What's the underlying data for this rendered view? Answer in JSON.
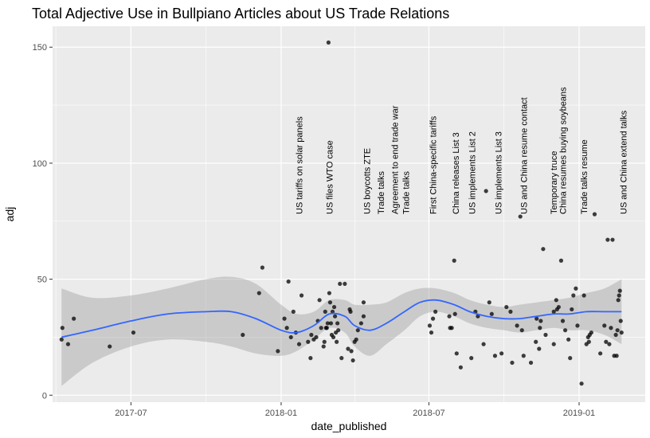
{
  "chart_data": {
    "type": "scatter",
    "title": "Total Adjective Use in Bullpiano Articles about US Trade Relations",
    "xlabel": "date_published",
    "ylabel": "adj",
    "xlim": [
      "2017-03-27",
      "2019-03-23"
    ],
    "ylim": [
      -3,
      159
    ],
    "x_ticks": [
      "2017-07-01",
      "2018-01-01",
      "2018-07-01",
      "2019-01-01"
    ],
    "x_tick_labels": [
      "2017-07",
      "2018-01",
      "2018-07",
      "2019-01"
    ],
    "y_ticks": [
      0,
      50,
      100,
      150
    ],
    "y_tick_labels": [
      "0",
      "50",
      "100",
      "150"
    ],
    "grid": true,
    "legend": "none",
    "colors": {
      "panel": "#ebebeb",
      "grid_major": "#ffffff",
      "point": "#000000",
      "smooth_line": "#3366ff",
      "ribbon": "#999999"
    },
    "series": [
      {
        "type": "points",
        "x": [
          "2017-04-07",
          "2017-04-08",
          "2017-04-15",
          "2017-04-22",
          "2017-06-05",
          "2017-07-04",
          "2017-11-15",
          "2017-12-05",
          "2017-12-09",
          "2017-12-28",
          "2018-01-05",
          "2018-01-08",
          "2018-01-10",
          "2018-01-13",
          "2018-01-16",
          "2018-01-19",
          "2018-01-23",
          "2018-01-26",
          "2018-02-03",
          "2018-02-06",
          "2018-02-07",
          "2018-02-10",
          "2018-02-13",
          "2018-02-15",
          "2018-02-17",
          "2018-02-19",
          "2018-02-22",
          "2018-02-23",
          "2018-02-24",
          "2018-02-25",
          "2018-02-26",
          "2018-02-27",
          "2018-02-28",
          "2018-03-01",
          "2018-03-02",
          "2018-03-03",
          "2018-03-04",
          "2018-03-05",
          "2018-03-06",
          "2018-03-07",
          "2018-03-08",
          "2018-03-09",
          "2018-03-10",
          "2018-03-11",
          "2018-03-12",
          "2018-03-14",
          "2018-03-16",
          "2018-03-20",
          "2018-03-24",
          "2018-03-26",
          "2018-03-27",
          "2018-03-28",
          "2018-03-30",
          "2018-04-01",
          "2018-04-03",
          "2018-04-05",
          "2018-04-09",
          "2018-04-12",
          "2018-04-12",
          "2018-07-02",
          "2018-07-04",
          "2018-07-06",
          "2018-07-09",
          "2018-07-26",
          "2018-07-27",
          "2018-07-29",
          "2018-08-01",
          "2018-08-02",
          "2018-08-04",
          "2018-08-09",
          "2018-08-22",
          "2018-08-27",
          "2018-08-30",
          "2018-09-06",
          "2018-09-09",
          "2018-09-13",
          "2018-09-16",
          "2018-09-20",
          "2018-09-28",
          "2018-10-04",
          "2018-10-09",
          "2018-10-11",
          "2018-10-17",
          "2018-10-21",
          "2018-10-23",
          "2018-10-25",
          "2018-11-03",
          "2018-11-09",
          "2018-11-10",
          "2018-11-13",
          "2018-11-14",
          "2018-11-15",
          "2018-11-18",
          "2018-11-21",
          "2018-12-01",
          "2018-12-01",
          "2018-12-04",
          "2018-12-05",
          "2018-12-07",
          "2018-12-10",
          "2018-12-12",
          "2018-12-15",
          "2018-12-19",
          "2018-12-21",
          "2018-12-23",
          "2018-12-25",
          "2018-12-28",
          "2018-12-30",
          "2019-01-04",
          "2019-01-07",
          "2019-01-10",
          "2019-01-12",
          "2019-01-13",
          "2019-01-14",
          "2019-01-16",
          "2019-01-20",
          "2019-01-27",
          "2019-02-01",
          "2019-02-03",
          "2019-02-05",
          "2019-02-07",
          "2019-02-09",
          "2019-02-11",
          "2019-02-13",
          "2019-02-15",
          "2019-02-16",
          "2019-02-17",
          "2019-02-18",
          "2019-02-19",
          "2019-02-20",
          "2019-02-21",
          "2019-02-22"
        ],
        "y": [
          24,
          29,
          22,
          33,
          21,
          27,
          26,
          44,
          55,
          19,
          33,
          29,
          49,
          25,
          36,
          27,
          22,
          43,
          23,
          16,
          26,
          24,
          25,
          32,
          41,
          29,
          21,
          23,
          36,
          29,
          29,
          31,
          152,
          44,
          40,
          31,
          26,
          36,
          25,
          38,
          34,
          27,
          23,
          31,
          28,
          48,
          16,
          48,
          20,
          37,
          36,
          19,
          15,
          23,
          24,
          28,
          31,
          34,
          40,
          30,
          27,
          33,
          36,
          34,
          29,
          29,
          58,
          35,
          18,
          12,
          16,
          36,
          34,
          22,
          88,
          40,
          35,
          17,
          18,
          38,
          36,
          14,
          30,
          77,
          28,
          17,
          14,
          23,
          33,
          20,
          29,
          32,
          63,
          26,
          22,
          36,
          41,
          37,
          38,
          58,
          32,
          28,
          24,
          16,
          37,
          43,
          46,
          30,
          5,
          43,
          22,
          25,
          23,
          26,
          27,
          78,
          18,
          30,
          23,
          67,
          22,
          29,
          67,
          17,
          26,
          17,
          28,
          41,
          43,
          45,
          32,
          27
        ]
      },
      {
        "type": "smooth",
        "name": "loess",
        "x": [
          "2017-04-07",
          "2017-05-15",
          "2017-07-01",
          "2017-08-15",
          "2017-10-01",
          "2017-11-01",
          "2017-12-01",
          "2018-01-01",
          "2018-01-20",
          "2018-02-10",
          "2018-03-01",
          "2018-03-20",
          "2018-04-01",
          "2018-04-20",
          "2018-05-10",
          "2018-06-01",
          "2018-06-20",
          "2018-07-10",
          "2018-08-01",
          "2018-08-20",
          "2018-09-10",
          "2018-10-01",
          "2018-10-20",
          "2018-11-10",
          "2018-12-01",
          "2018-12-20",
          "2019-01-10",
          "2019-02-01",
          "2019-02-22"
        ],
        "y": [
          25,
          28,
          32,
          35,
          36,
          36,
          33,
          28,
          27,
          30,
          35,
          34,
          30,
          28,
          31,
          36,
          40,
          41,
          39,
          36,
          34,
          33,
          33,
          34,
          35,
          35,
          36,
          36,
          36
        ],
        "ymin": [
          4,
          14,
          21,
          24,
          23,
          21,
          18,
          17,
          19,
          24,
          29,
          27,
          21,
          17,
          22,
          28,
          34,
          36,
          34,
          31,
          29,
          28,
          27,
          28,
          29,
          28,
          28,
          26,
          22
        ],
        "ymax": [
          46,
          42,
          43,
          46,
          50,
          51,
          48,
          39,
          35,
          36,
          41,
          41,
          39,
          39,
          40,
          44,
          46,
          46,
          44,
          41,
          39,
          38,
          39,
          40,
          41,
          42,
          44,
          46,
          50
        ]
      }
    ],
    "annotations": [
      {
        "date": "2018-01-23",
        "text": "US tariffs on solar panels"
      },
      {
        "date": "2018-03-01",
        "text": "US files WTO case"
      },
      {
        "date": "2018-04-16",
        "text": "US boycotts ZTE"
      },
      {
        "date": "2018-05-03",
        "text": "Trade talks"
      },
      {
        "date": "2018-05-20",
        "text": "Agreement to end trade war"
      },
      {
        "date": "2018-06-03",
        "text": "Trade talks"
      },
      {
        "date": "2018-07-06",
        "text": "First China-specific tariffs"
      },
      {
        "date": "2018-08-03",
        "text": "China releases List 3"
      },
      {
        "date": "2018-08-23",
        "text": "US implements List 2"
      },
      {
        "date": "2018-09-24",
        "text": "US implements List 3"
      },
      {
        "date": "2018-10-25",
        "text": "US and China resume contact"
      },
      {
        "date": "2018-12-01",
        "text": "Temporary truce"
      },
      {
        "date": "2018-12-12",
        "text": "China resumes buying soybeans"
      },
      {
        "date": "2019-01-07",
        "text": "Trade talks resume"
      },
      {
        "date": "2019-02-24",
        "text": "US and China extend talks"
      }
    ]
  }
}
